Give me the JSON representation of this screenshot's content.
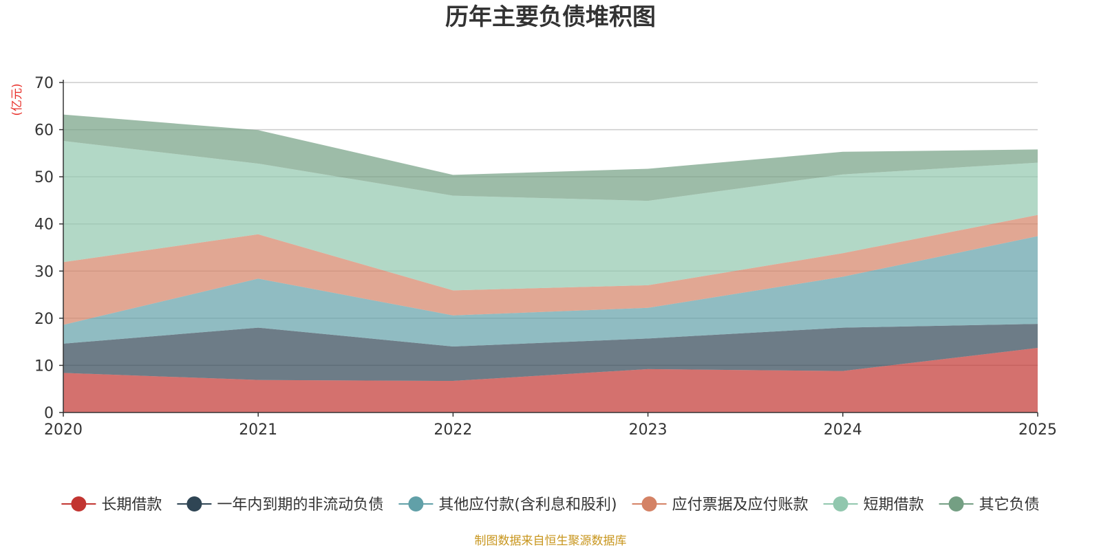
{
  "chart_data": {
    "type": "area",
    "stacked": true,
    "title": "历年主要负债堆积图",
    "unit_label": "(亿元)",
    "x": [
      "2020",
      "2021",
      "2022",
      "2023",
      "2024",
      "2025"
    ],
    "ylim": [
      0,
      70
    ],
    "yticks": [
      "0",
      "10",
      "20",
      "30",
      "40",
      "50",
      "60",
      "70"
    ],
    "grid": true,
    "legend_position": "bottom",
    "series": [
      {
        "name": "长期借款",
        "color": "#c23531",
        "values": [
          8.4,
          6.9,
          6.7,
          9.2,
          8.8,
          13.7
        ]
      },
      {
        "name": "一年内到期的非流动负债",
        "color": "#2f4554",
        "values": [
          6.2,
          11.1,
          7.3,
          6.5,
          9.2,
          5.1
        ]
      },
      {
        "name": "其他应付款(含利息和股利)",
        "color": "#61a0a8",
        "values": [
          4.0,
          10.4,
          6.6,
          6.5,
          10.8,
          18.6
        ]
      },
      {
        "name": "应付票据及应付账款",
        "color": "#d48265",
        "values": [
          13.3,
          9.4,
          5.3,
          4.8,
          5.0,
          4.5
        ]
      },
      {
        "name": "短期借款",
        "color": "#91c7ae",
        "values": [
          25.7,
          15.0,
          20.1,
          17.9,
          16.7,
          11.1
        ]
      },
      {
        "name": "其它负债",
        "color": "#749f83",
        "values": [
          5.6,
          7.1,
          4.4,
          6.8,
          4.8,
          2.8
        ]
      }
    ],
    "source": "制图数据来自恒生聚源数据库"
  }
}
